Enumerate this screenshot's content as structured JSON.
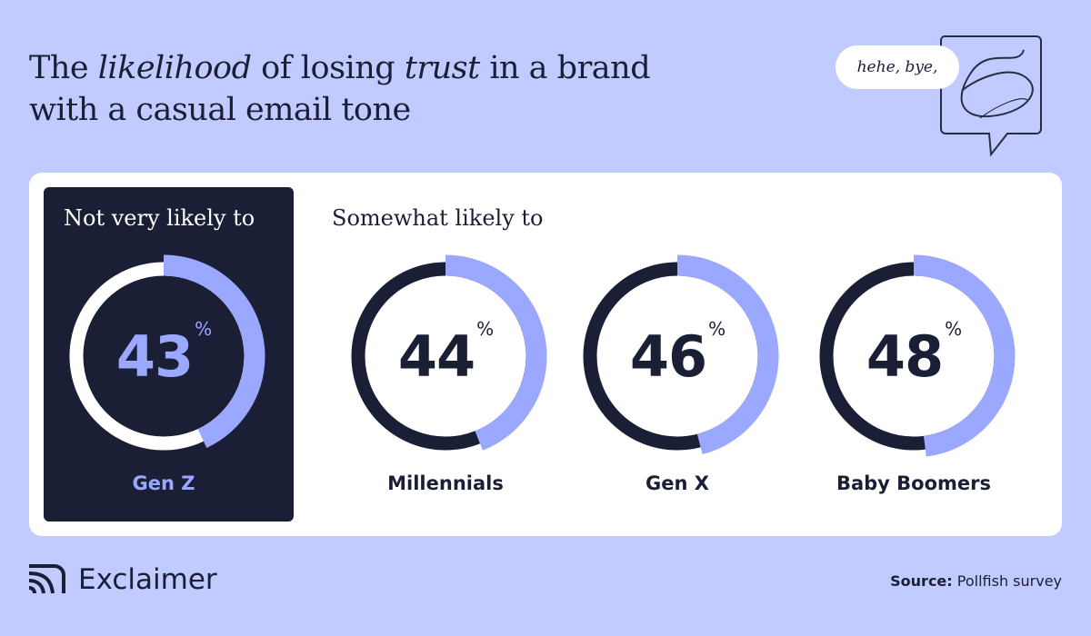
{
  "title": {
    "part1": "The ",
    "italic1": "likelihood",
    "part2": " of losing ",
    "italic2": "trust",
    "part3": " in a brand",
    "line2": "with a casual email tone"
  },
  "bubble_text": "hehe, bye,",
  "colors": {
    "background": "#c2cbff",
    "dark": "#1b1f36",
    "accent": "#9aa8ff",
    "card": "#ffffff"
  },
  "chart_data": {
    "type": "donut",
    "unit": "%",
    "groups": [
      {
        "label": "Not very likely to",
        "items": [
          {
            "category": "Gen Z",
            "value": 43
          }
        ]
      },
      {
        "label": "Somewhat likely to",
        "items": [
          {
            "category": "Millennials",
            "value": 44
          },
          {
            "category": "Gen X",
            "value": 46
          },
          {
            "category": "Baby Boomers",
            "value": 48
          }
        ]
      }
    ]
  },
  "footer": {
    "brand": "Exclaimer",
    "source_label": "Source:",
    "source_value": "Pollfish survey"
  }
}
